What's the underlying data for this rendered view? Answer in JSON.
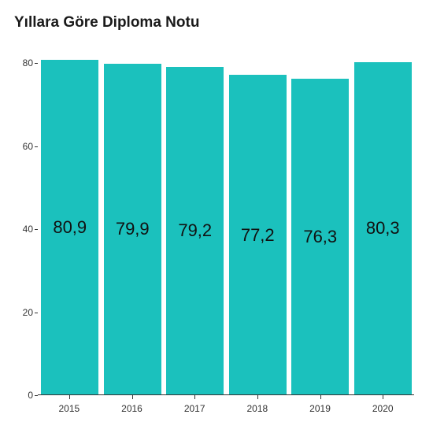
{
  "chart": {
    "type": "bar",
    "title": "Yıllara Göre Diploma Notu",
    "title_fontsize": 19,
    "title_color": "#1a1a1a",
    "background_color": "#ffffff",
    "bar_color": "#1bc1bd",
    "bar_width_ratio": 0.92,
    "value_label_fontsize": 22,
    "value_label_color": "#111111",
    "axis_label_fontsize": 12,
    "axis_label_color": "#333333",
    "axis_line_color": "#333333",
    "ylim": [
      0,
      85
    ],
    "yticks": [
      0,
      20,
      40,
      60,
      80
    ],
    "categories": [
      "2015",
      "2016",
      "2017",
      "2018",
      "2019",
      "2020"
    ],
    "values": [
      80.9,
      79.9,
      79.2,
      77.2,
      76.3,
      80.3
    ],
    "value_labels": [
      "80,9",
      "79,9",
      "79,2",
      "77,2",
      "76,3",
      "80,3"
    ]
  }
}
